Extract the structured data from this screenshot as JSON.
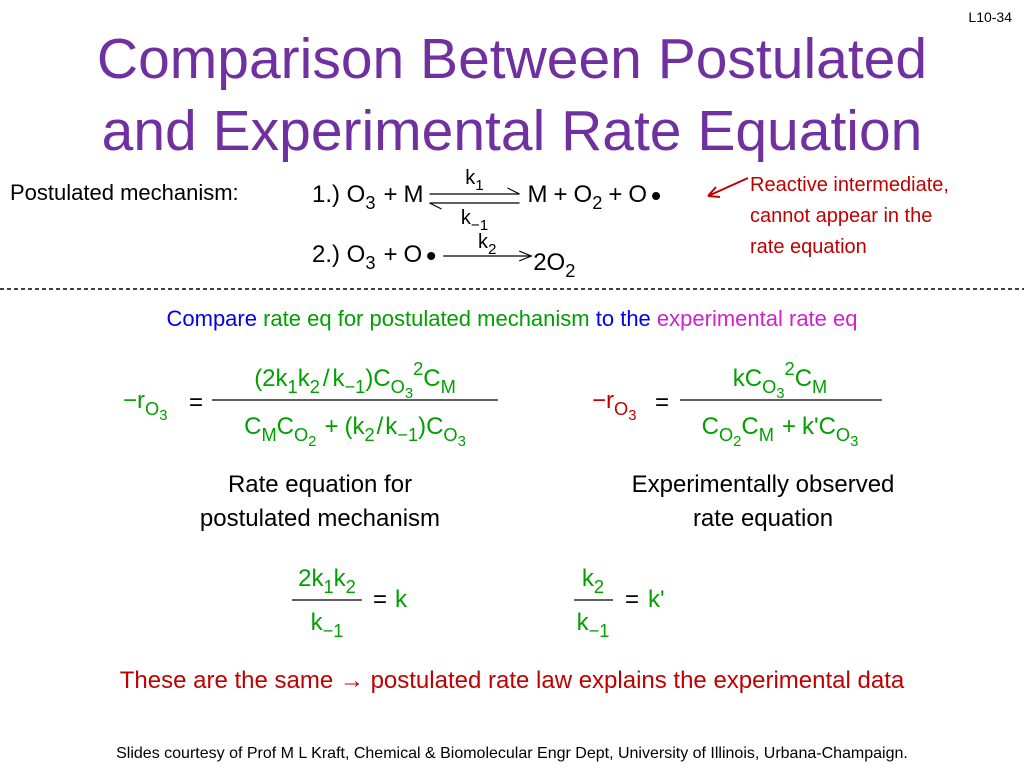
{
  "slide_number": "L10-34",
  "title": [
    "Comparison Between Postulated",
    "and Experimental Rate Equation"
  ],
  "mechanism": {
    "label": "Postulated mechanism:",
    "step1": [
      "1.) O",
      "3",
      "+",
      "M",
      "k",
      "1",
      "k",
      "−1",
      "M",
      "+",
      "O",
      "2",
      "+",
      "O"
    ],
    "step2": [
      "2.) O",
      "3",
      "+",
      "O",
      "k",
      "2",
      "2O",
      "2"
    ]
  },
  "note": [
    "Reactive intermediate,",
    "cannot appear in the",
    "rate equation"
  ],
  "compare": [
    "Compare",
    "rate eq for postulated mechanism",
    "to the",
    "experimental rate eq"
  ],
  "postulated_rate": {
    "lhs": [
      "−r",
      "O",
      "3"
    ],
    "equals": "=",
    "numerator": [
      "(2k",
      "1",
      "k",
      "2",
      "/",
      "k",
      "−1",
      ")C",
      "O",
      "3",
      "2",
      "C",
      "M"
    ],
    "denominator": [
      "C",
      "M",
      "C",
      "O",
      "2",
      "+",
      "(k",
      "2",
      "/",
      "k",
      "−1",
      ")C",
      "O",
      "3"
    ],
    "caption": [
      "Rate equation for",
      "postulated mechanism"
    ]
  },
  "experimental_rate": {
    "lhs": [
      "−r",
      "O",
      "3"
    ],
    "equals": "=",
    "numerator": [
      "kC",
      "O",
      "3",
      "2",
      "C",
      "M"
    ],
    "denominator": [
      "C",
      "O",
      "2",
      "C",
      "M",
      "+",
      "k'C",
      "O",
      "3"
    ],
    "caption": [
      "Experimentally observed",
      "rate equation"
    ]
  },
  "identities": [
    {
      "numerator": [
        "2k",
        "1",
        "k",
        "2"
      ],
      "denominator": [
        "k",
        "−1"
      ],
      "equals": "=",
      "result": "k"
    },
    {
      "numerator": [
        "k",
        "2"
      ],
      "denominator": [
        "k",
        "−1"
      ],
      "equals": "=",
      "result": "k'"
    }
  ],
  "conclusion": [
    "These are the same",
    "→",
    "postulated rate law explains the experimental data"
  ],
  "footer": "Slides courtesy of Prof M L Kraft, Chemical & Biomolecular Engr Dept, University of Illinois, Urbana-Champaign."
}
